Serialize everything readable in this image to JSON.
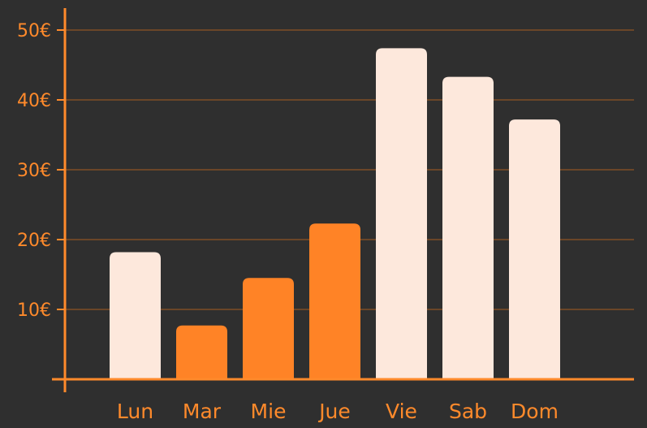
{
  "chart_data": {
    "type": "bar",
    "categories": [
      "Lun",
      "Mar",
      "Mie",
      "Jue",
      "Vie",
      "Sab",
      "Dom"
    ],
    "values": [
      18.2,
      7.7,
      14.5,
      22.3,
      47.4,
      43.3,
      37.2
    ],
    "highlight": [
      false,
      true,
      true,
      true,
      false,
      false,
      false
    ],
    "title": "",
    "xlabel": "",
    "ylabel": "",
    "ylim": [
      0,
      53
    ],
    "yticks": [
      10,
      20,
      30,
      40,
      50
    ],
    "ytick_labels": [
      "10€",
      "20€",
      "30€",
      "40€",
      "50€"
    ],
    "grid": true,
    "colors": {
      "background": "#2f2f2f",
      "axis": "#ff8a2b",
      "grid": "#6b4628",
      "bar_default": "#fde8dc",
      "bar_highlight": "#ff8326",
      "label": "#ff8a2b"
    }
  }
}
